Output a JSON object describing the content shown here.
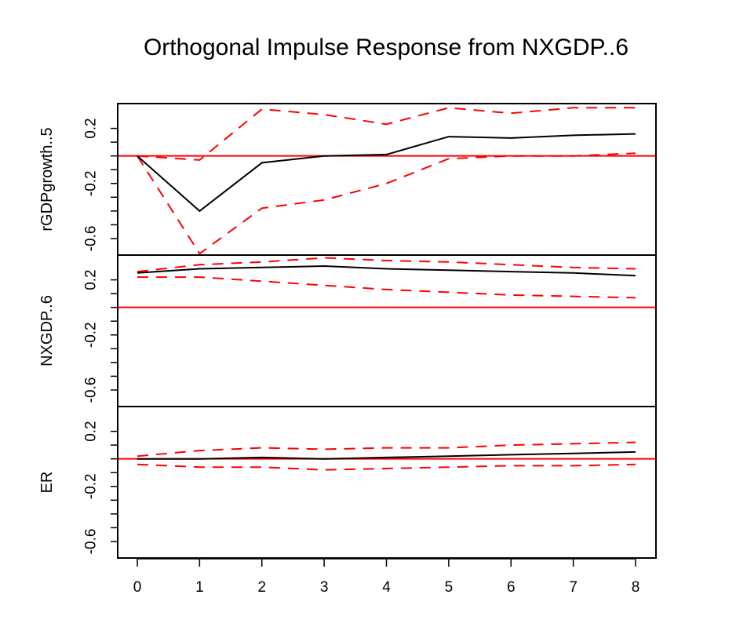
{
  "chart_data": {
    "type": "line",
    "title": "Orthogonal Impulse Response from NXGDP..6",
    "x": [
      0,
      1,
      2,
      3,
      4,
      5,
      6,
      7,
      8
    ],
    "x_tick_labels": [
      "0",
      "1",
      "2",
      "3",
      "4",
      "5",
      "6",
      "7",
      "8"
    ],
    "y_tick_labels": [
      "-0.6",
      "-0.2",
      "0.2"
    ],
    "ylim": [
      -0.72,
      0.38
    ],
    "zero_line": 0,
    "colors": {
      "response": "#000000",
      "ci": "#ff0000",
      "zero": "#ff0000"
    },
    "panels": [
      {
        "ylabel": "rGDPgrowth..5",
        "response": [
          0,
          -0.4,
          -0.05,
          0.0,
          0.01,
          0.14,
          0.13,
          0.15,
          0.16
        ],
        "upper": [
          0,
          -0.03,
          0.34,
          0.3,
          0.23,
          0.35,
          0.31,
          0.35,
          0.35
        ],
        "lower": [
          0,
          -0.71,
          -0.38,
          -0.32,
          -0.2,
          -0.02,
          0.0,
          0.0,
          0.02
        ]
      },
      {
        "ylabel": "NXGDP..6",
        "response": [
          0.25,
          0.28,
          0.29,
          0.3,
          0.28,
          0.27,
          0.26,
          0.25,
          0.23
        ],
        "upper": [
          0.26,
          0.31,
          0.33,
          0.36,
          0.34,
          0.33,
          0.31,
          0.29,
          0.28
        ],
        "lower": [
          0.22,
          0.22,
          0.19,
          0.16,
          0.13,
          0.11,
          0.09,
          0.08,
          0.07
        ]
      },
      {
        "ylabel": "ER",
        "response": [
          0.0,
          0.0,
          0.01,
          0.0,
          0.01,
          0.02,
          0.03,
          0.04,
          0.05
        ],
        "upper": [
          0.02,
          0.06,
          0.08,
          0.07,
          0.08,
          0.08,
          0.1,
          0.11,
          0.12
        ],
        "lower": [
          -0.04,
          -0.06,
          -0.06,
          -0.08,
          -0.07,
          -0.06,
          -0.05,
          -0.05,
          -0.04
        ]
      }
    ]
  }
}
